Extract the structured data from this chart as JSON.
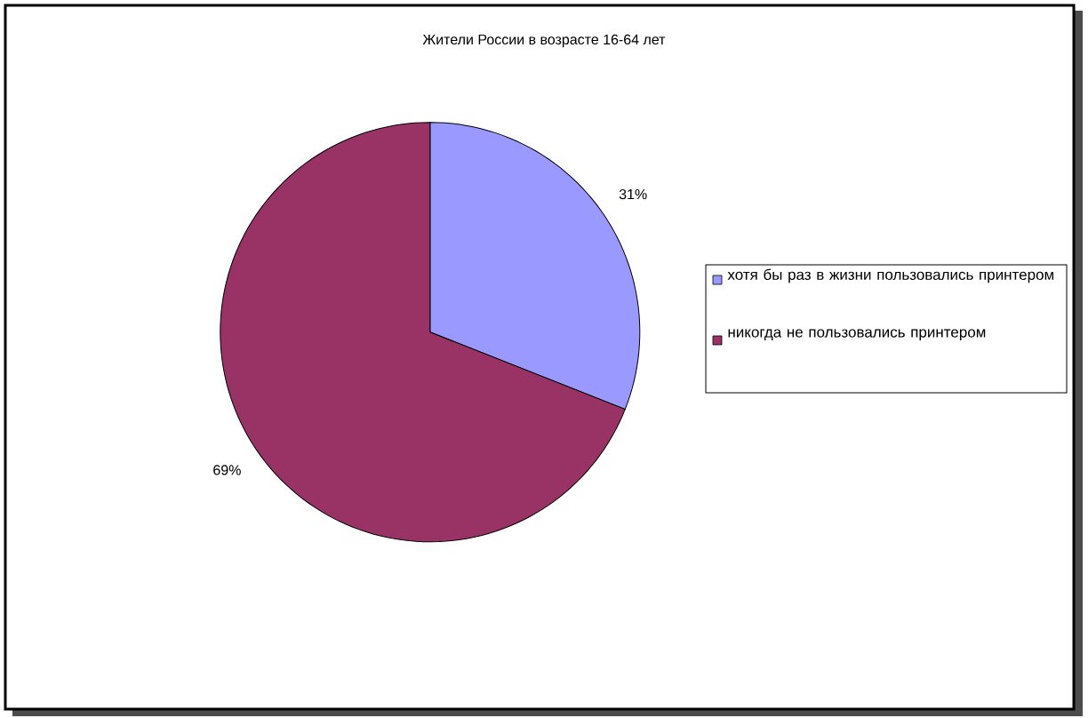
{
  "chart_data": {
    "type": "pie",
    "title": "Жители России в возрасте 16-64 лет",
    "categories": [
      "хотя бы раз в жизни пользовались принтером",
      "никогда не пользовались принтером"
    ],
    "values": [
      31,
      69
    ],
    "colors": [
      "#9999ff",
      "#993366"
    ],
    "value_labels": [
      "31%",
      "69%"
    ],
    "legend": "right"
  }
}
